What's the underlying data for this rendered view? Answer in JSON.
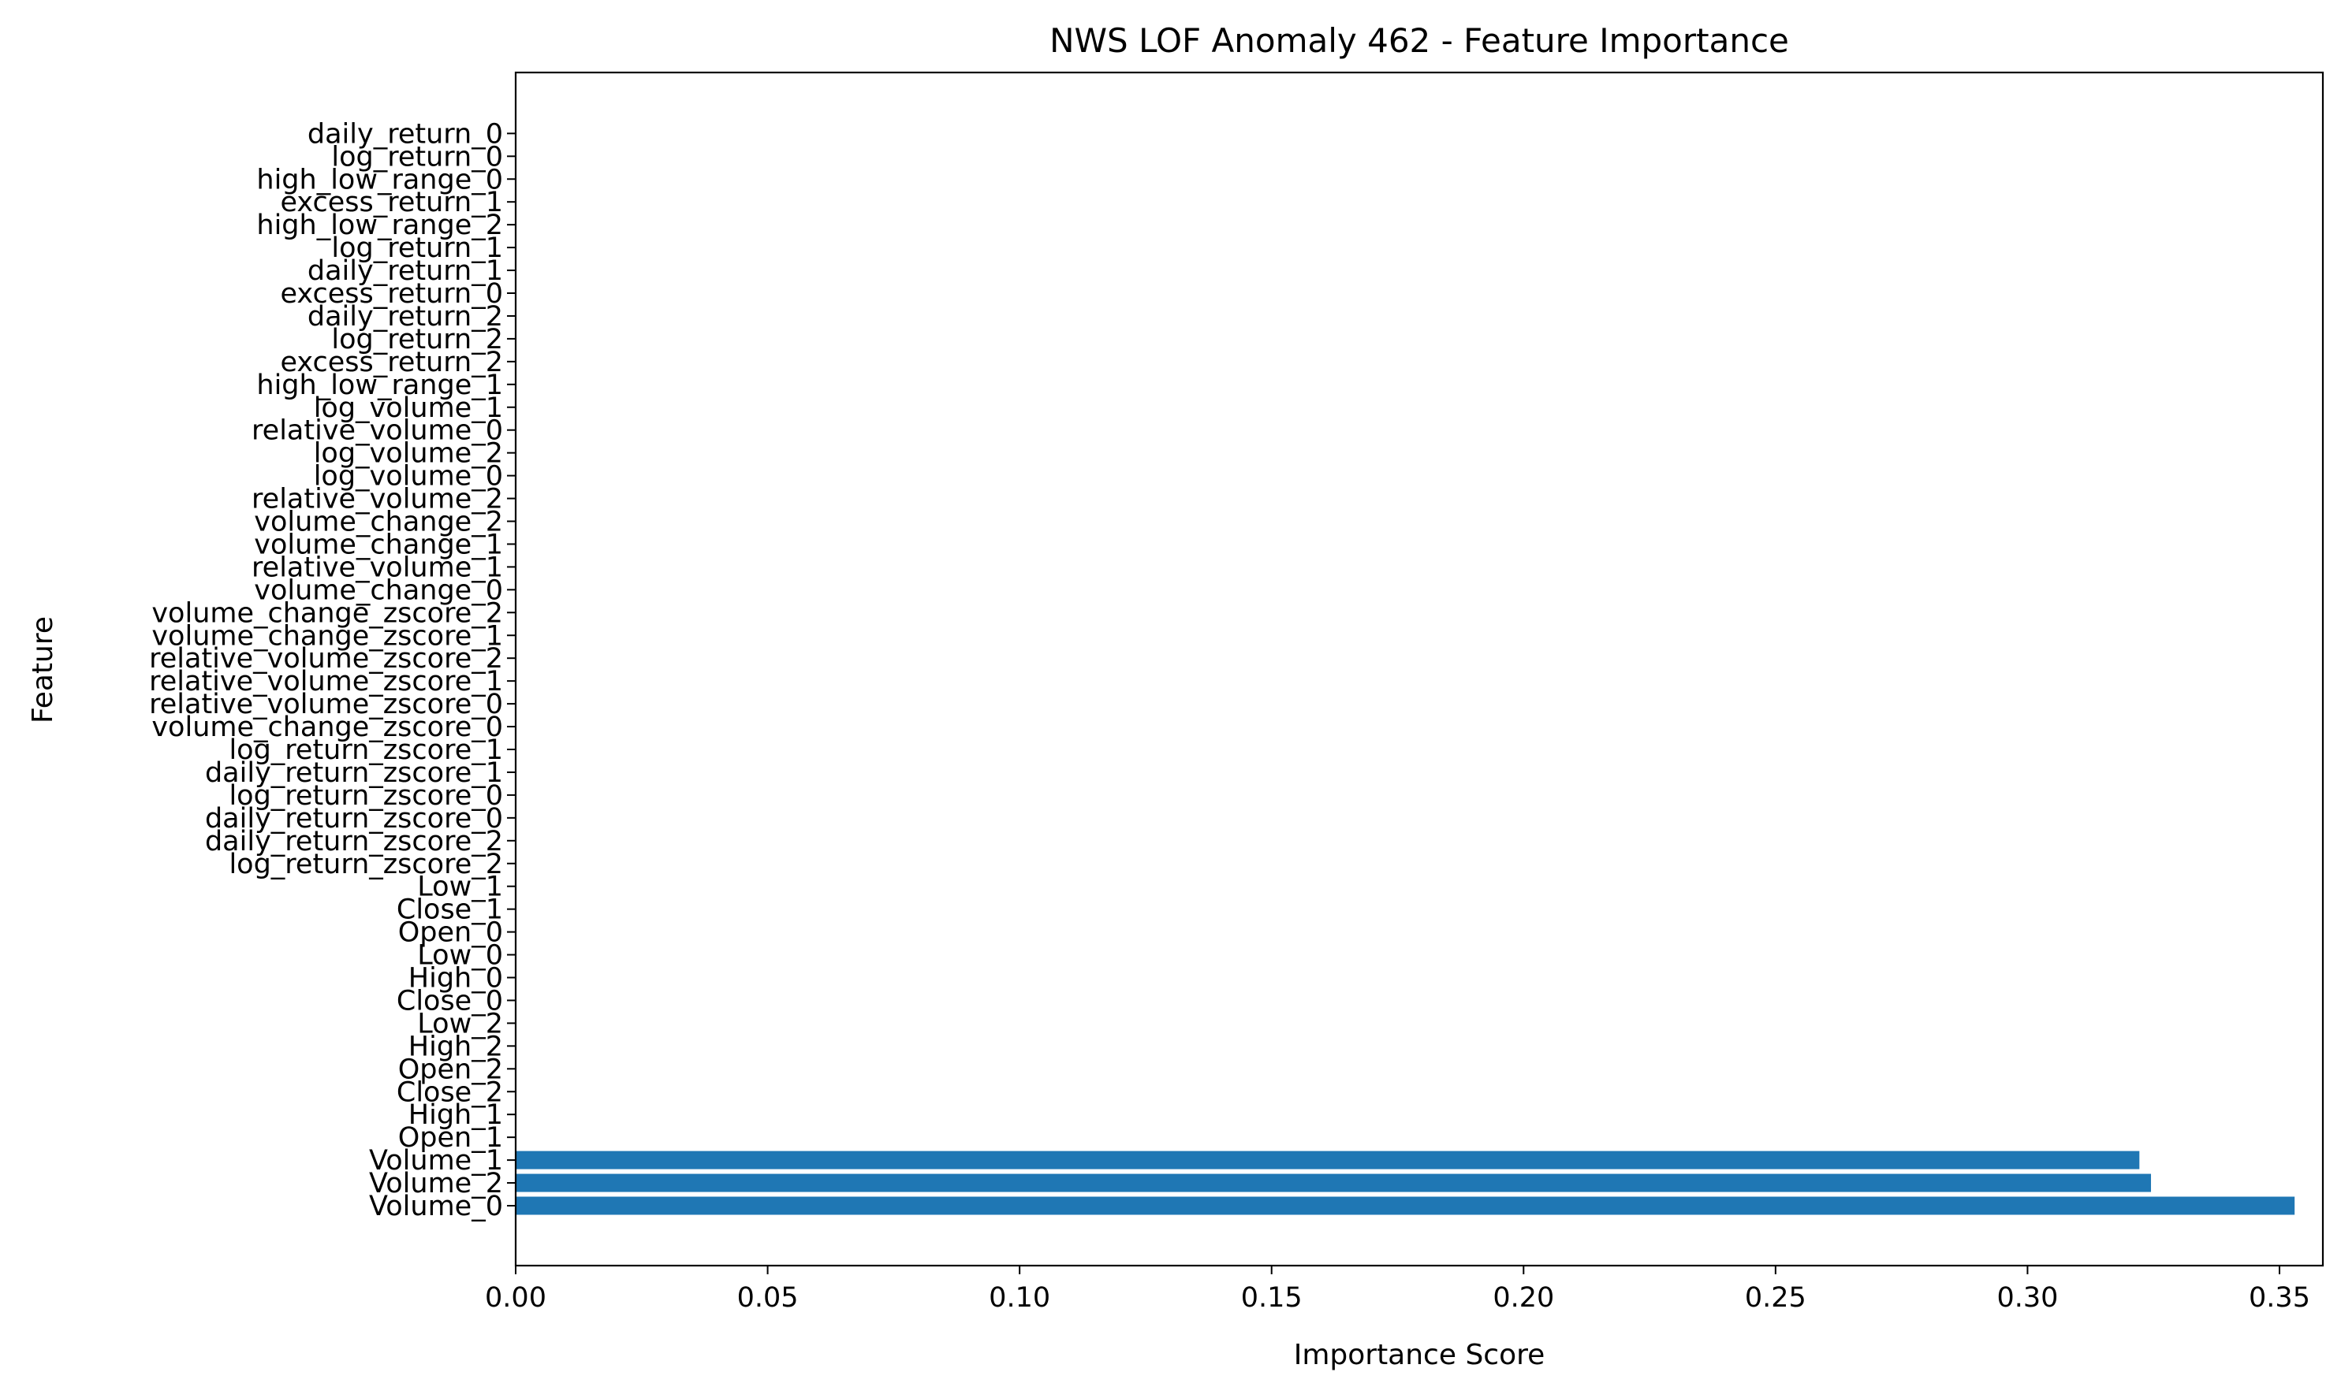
{
  "chart_data": {
    "type": "bar",
    "orientation": "horizontal",
    "title": "NWS LOF Anomaly 462 - Feature Importance",
    "xlabel": "Importance Score",
    "ylabel": "Feature",
    "xlim": [
      0,
      0.37
    ],
    "xticks": [
      "0.00",
      "0.05",
      "0.10",
      "0.15",
      "0.20",
      "0.25",
      "0.30",
      "0.35"
    ],
    "grid": false,
    "bar_color": "#1f77b4",
    "categories": [
      "Volume_0",
      "Volume_2",
      "Volume_1",
      "Open_1",
      "High_1",
      "Close_2",
      "Open_2",
      "High_2",
      "Low_2",
      "Close_0",
      "High_0",
      "Low_0",
      "Open_0",
      "Close_1",
      "Low_1",
      "log_return_zscore_2",
      "daily_return_zscore_2",
      "daily_return_zscore_0",
      "log_return_zscore_0",
      "daily_return_zscore_1",
      "log_return_zscore_1",
      "volume_change_zscore_0",
      "relative_volume_zscore_0",
      "relative_volume_zscore_1",
      "relative_volume_zscore_2",
      "volume_change_zscore_1",
      "volume_change_zscore_2",
      "volume_change_0",
      "relative_volume_1",
      "volume_change_1",
      "volume_change_2",
      "relative_volume_2",
      "log_volume_0",
      "log_volume_2",
      "relative_volume_0",
      "log_volume_1",
      "high_low_range_1",
      "excess_return_2",
      "log_return_2",
      "daily_return_2",
      "excess_return_0",
      "daily_return_1",
      "log_return_1",
      "high_low_range_2",
      "excess_return_1",
      "high_low_range_0",
      "log_return_0",
      "daily_return_0"
    ],
    "values": [
      0.353,
      0.3245,
      0.3222,
      0,
      0,
      0,
      0,
      0,
      0,
      0,
      0,
      0,
      0,
      0,
      0,
      0,
      0,
      0,
      0,
      0,
      0,
      0,
      0,
      0,
      0,
      0,
      0,
      0,
      0,
      0,
      0,
      0,
      0,
      0,
      0,
      0,
      0,
      0,
      0,
      0,
      0,
      0,
      0,
      0,
      0,
      0,
      0,
      0
    ]
  }
}
